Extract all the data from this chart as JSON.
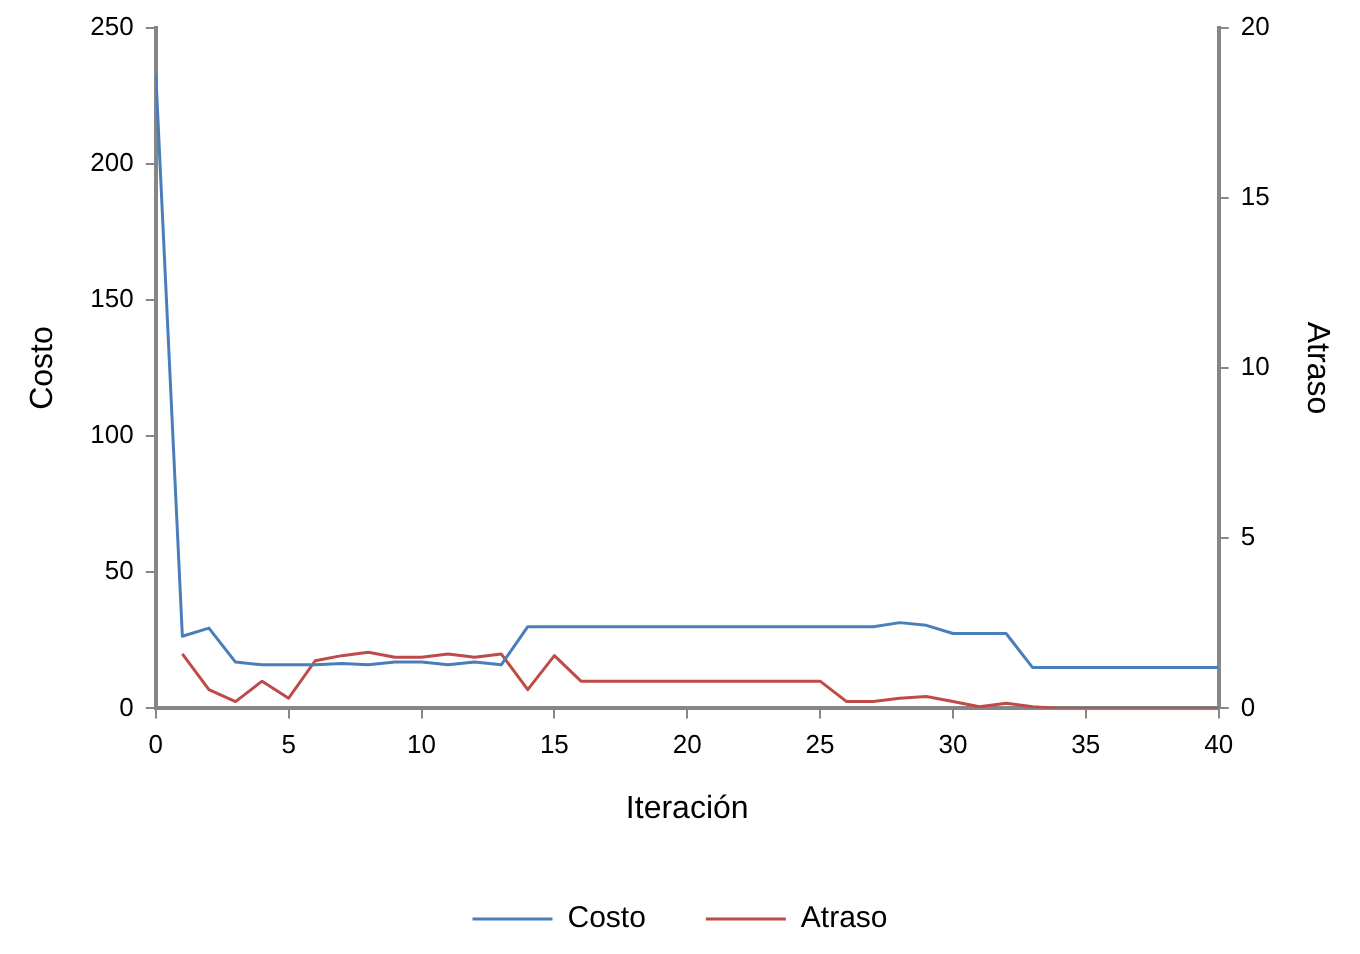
{
  "chart_data": {
    "type": "line",
    "xlabel": "Iteración",
    "ylabel": "Costo",
    "y2label": "Atraso",
    "x": [
      0,
      1,
      2,
      3,
      4,
      5,
      6,
      7,
      8,
      9,
      10,
      11,
      12,
      13,
      14,
      15,
      16,
      17,
      18,
      19,
      20,
      21,
      22,
      23,
      24,
      25,
      26,
      27,
      28,
      29,
      30,
      31,
      32,
      33,
      34,
      35,
      36,
      37,
      38,
      39,
      40
    ],
    "series": [
      {
        "name": "Costo",
        "color": "#4a7ebb",
        "values": [
          233,
          26.5,
          29.5,
          17,
          16,
          16,
          16,
          16.5,
          16,
          17,
          17,
          16,
          17,
          16,
          30,
          30,
          30,
          30,
          30,
          30,
          30,
          30,
          30,
          30,
          30,
          30,
          30,
          30,
          31.5,
          30.5,
          27.5,
          27.5,
          27.5,
          15,
          15,
          15,
          15,
          15,
          15,
          15,
          15
        ]
      },
      {
        "name": "Atraso",
        "color": "#be4b48",
        "axis": "y2",
        "values": [
          null,
          1.6,
          0.55,
          0.2,
          0.8,
          0.3,
          1.4,
          1.55,
          1.65,
          1.5,
          1.5,
          1.6,
          1.5,
          1.6,
          0.55,
          1.55,
          0.8,
          0.8,
          0.8,
          0.8,
          0.8,
          0.8,
          0.8,
          0.8,
          0.8,
          0.8,
          0.2,
          0.2,
          0.3,
          0.35,
          0.2,
          0.05,
          0.15,
          0.05,
          0,
          0,
          0,
          0,
          0,
          0,
          0
        ]
      }
    ],
    "xlim": [
      0,
      40
    ],
    "xticks": [
      0,
      5,
      10,
      15,
      20,
      25,
      30,
      35,
      40
    ],
    "ylim": [
      0,
      250
    ],
    "yticks": [
      0,
      50,
      100,
      150,
      200,
      250
    ],
    "y2lim": [
      0,
      20
    ],
    "y2ticks": [
      0,
      5,
      10,
      15,
      20
    ],
    "grid": false,
    "legend": "bottom",
    "marker": "none",
    "line_style": "solid"
  }
}
